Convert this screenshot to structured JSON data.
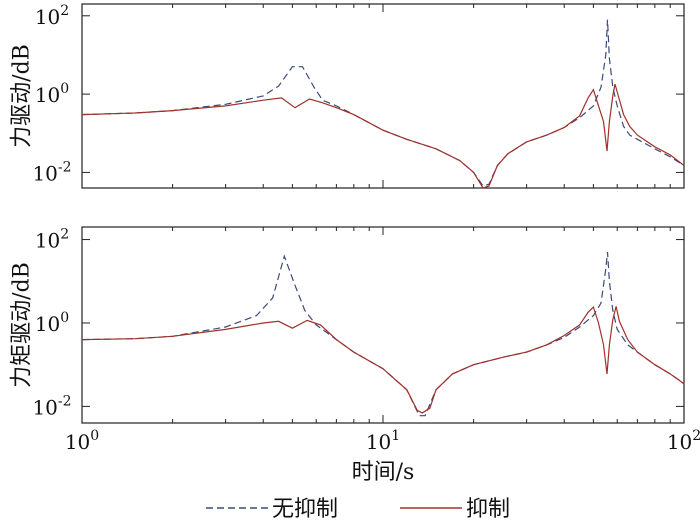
{
  "chart_data": [
    {
      "type": "line",
      "ylabel": "力驱动/dB",
      "xscale": "log",
      "yscale": "log",
      "xlim": [
        1,
        100
      ],
      "ylim": [
        0.004,
        200
      ],
      "yticks": [
        {
          "value": 0.01,
          "base": "10",
          "exp": "-2"
        },
        {
          "value": 1,
          "base": "10",
          "exp": "0"
        },
        {
          "value": 100,
          "base": "10",
          "exp": "2"
        }
      ],
      "series": [
        {
          "name": "无抑制",
          "color": "#3a4a7a",
          "dash": "dashed",
          "points": [
            [
              1,
              0.3
            ],
            [
              1.5,
              0.33
            ],
            [
              2,
              0.38
            ],
            [
              3,
              0.55
            ],
            [
              4,
              0.9
            ],
            [
              4.5,
              1.6
            ],
            [
              5,
              5
            ],
            [
              5.4,
              5
            ],
            [
              5.9,
              1.5
            ],
            [
              6.3,
              0.7
            ],
            [
              7,
              0.5
            ],
            [
              8,
              0.3
            ],
            [
              10,
              0.12
            ],
            [
              12,
              0.07
            ],
            [
              15,
              0.04
            ],
            [
              18,
              0.02
            ],
            [
              20,
              0.01
            ],
            [
              21.5,
              0.0045
            ],
            [
              22.5,
              0.005
            ],
            [
              24,
              0.015
            ],
            [
              26,
              0.03
            ],
            [
              30,
              0.06
            ],
            [
              35,
              0.09
            ],
            [
              40,
              0.14
            ],
            [
              45,
              0.25
            ],
            [
              50,
              0.5
            ],
            [
              53,
              1.5
            ],
            [
              55,
              10
            ],
            [
              55.7,
              80
            ],
            [
              56.5,
              8
            ],
            [
              58,
              1.5
            ],
            [
              60,
              0.5
            ],
            [
              63,
              0.15
            ],
            [
              66,
              0.09
            ],
            [
              70,
              0.07
            ],
            [
              80,
              0.04
            ],
            [
              90,
              0.025
            ],
            [
              100,
              0.015
            ]
          ]
        },
        {
          "name": "抑制",
          "color": "#a0302a",
          "dash": "solid",
          "points": [
            [
              1,
              0.3
            ],
            [
              1.5,
              0.33
            ],
            [
              2,
              0.38
            ],
            [
              3,
              0.5
            ],
            [
              4,
              0.7
            ],
            [
              4.6,
              0.8
            ],
            [
              5.1,
              0.45
            ],
            [
              5.7,
              0.75
            ],
            [
              6.3,
              0.6
            ],
            [
              7,
              0.45
            ],
            [
              8,
              0.3
            ],
            [
              10,
              0.12
            ],
            [
              12,
              0.07
            ],
            [
              15,
              0.04
            ],
            [
              18,
              0.02
            ],
            [
              20,
              0.01
            ],
            [
              21.5,
              0.004
            ],
            [
              22.5,
              0.0045
            ],
            [
              24,
              0.015
            ],
            [
              26,
              0.03
            ],
            [
              30,
              0.06
            ],
            [
              35,
              0.09
            ],
            [
              40,
              0.14
            ],
            [
              45,
              0.28
            ],
            [
              48,
              0.8
            ],
            [
              50,
              1.3
            ],
            [
              52,
              0.5
            ],
            [
              54,
              0.2
            ],
            [
              55.5,
              0.035
            ],
            [
              56.5,
              0.2
            ],
            [
              58,
              0.9
            ],
            [
              59,
              1.8
            ],
            [
              60.5,
              0.9
            ],
            [
              63,
              0.3
            ],
            [
              66,
              0.15
            ],
            [
              70,
              0.09
            ],
            [
              80,
              0.045
            ],
            [
              90,
              0.028
            ],
            [
              100,
              0.015
            ]
          ]
        }
      ]
    },
    {
      "type": "line",
      "xlabel": "时间/s",
      "ylabel": "力矩驱动/dB",
      "xscale": "log",
      "yscale": "log",
      "xlim": [
        1,
        100
      ],
      "ylim": [
        0.004,
        200
      ],
      "xticks": [
        {
          "value": 1,
          "base": "10",
          "exp": "0"
        },
        {
          "value": 10,
          "base": "10",
          "exp": "1"
        },
        {
          "value": 100,
          "base": "10",
          "exp": "2"
        }
      ],
      "yticks": [
        {
          "value": 0.01,
          "base": "10",
          "exp": "-2"
        },
        {
          "value": 1,
          "base": "10",
          "exp": "0"
        },
        {
          "value": 100,
          "base": "10",
          "exp": "2"
        }
      ],
      "series": [
        {
          "name": "无抑制",
          "color": "#3a4a7a",
          "dash": "dashed",
          "points": [
            [
              1,
              0.4
            ],
            [
              1.5,
              0.42
            ],
            [
              2,
              0.48
            ],
            [
              3,
              0.8
            ],
            [
              3.8,
              1.5
            ],
            [
              4.3,
              4
            ],
            [
              4.7,
              40
            ],
            [
              5.1,
              8
            ],
            [
              5.5,
              2
            ],
            [
              6,
              0.9
            ],
            [
              7,
              0.4
            ],
            [
              8,
              0.2
            ],
            [
              10,
              0.08
            ],
            [
              12,
              0.025
            ],
            [
              13.2,
              0.006
            ],
            [
              13.8,
              0.006
            ],
            [
              15,
              0.025
            ],
            [
              17,
              0.06
            ],
            [
              20,
              0.1
            ],
            [
              25,
              0.15
            ],
            [
              30,
              0.2
            ],
            [
              35,
              0.3
            ],
            [
              40,
              0.45
            ],
            [
              45,
              0.8
            ],
            [
              50,
              1.5
            ],
            [
              53,
              3
            ],
            [
              55,
              20
            ],
            [
              55.7,
              50
            ],
            [
              56.5,
              10
            ],
            [
              58,
              2
            ],
            [
              60,
              0.7
            ],
            [
              65,
              0.3
            ],
            [
              70,
              0.2
            ],
            [
              80,
              0.1
            ],
            [
              90,
              0.06
            ],
            [
              100,
              0.035
            ]
          ]
        },
        {
          "name": "抑制",
          "color": "#a0302a",
          "dash": "solid",
          "points": [
            [
              1,
              0.4
            ],
            [
              1.5,
              0.42
            ],
            [
              2,
              0.48
            ],
            [
              3,
              0.7
            ],
            [
              4,
              1
            ],
            [
              4.5,
              1.1
            ],
            [
              5,
              0.75
            ],
            [
              5.6,
              1.15
            ],
            [
              6.2,
              0.9
            ],
            [
              7,
              0.4
            ],
            [
              8,
              0.2
            ],
            [
              10,
              0.08
            ],
            [
              12,
              0.025
            ],
            [
              13,
              0.008
            ],
            [
              13.5,
              0.007
            ],
            [
              14.3,
              0.009
            ],
            [
              15,
              0.025
            ],
            [
              17,
              0.06
            ],
            [
              20,
              0.1
            ],
            [
              25,
              0.15
            ],
            [
              30,
              0.2
            ],
            [
              35,
              0.3
            ],
            [
              40,
              0.5
            ],
            [
              45,
              0.9
            ],
            [
              48,
              1.8
            ],
            [
              50,
              2.4
            ],
            [
              52,
              1
            ],
            [
              54,
              0.3
            ],
            [
              55.5,
              0.06
            ],
            [
              56.5,
              0.3
            ],
            [
              58,
              1.2
            ],
            [
              59.5,
              2.5
            ],
            [
              61,
              1.1
            ],
            [
              65,
              0.4
            ],
            [
              70,
              0.2
            ],
            [
              80,
              0.1
            ],
            [
              90,
              0.06
            ],
            [
              100,
              0.035
            ]
          ]
        }
      ]
    }
  ],
  "legend": {
    "placement": "bottom-center",
    "items": [
      {
        "label": "无抑制",
        "color": "#3a4a7a",
        "dash": "dashed"
      },
      {
        "label": "抑制",
        "color": "#a0302a",
        "dash": "solid"
      }
    ]
  }
}
